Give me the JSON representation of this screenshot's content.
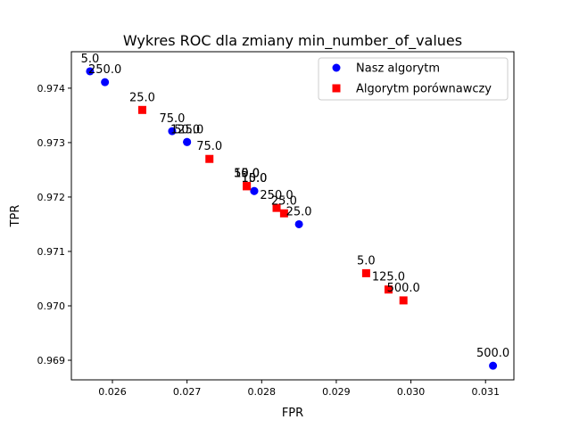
{
  "chart_data": {
    "type": "scatter",
    "title": "Wykres ROC dla zmiany min_number_of_values",
    "xlabel": "FPR",
    "ylabel": "TPR",
    "xlim": [
      0.02545,
      0.03138
    ],
    "ylim": [
      0.96864,
      0.97467
    ],
    "xticks": [
      {
        "value": 0.026,
        "label": "0.026"
      },
      {
        "value": 0.027,
        "label": "0.027"
      },
      {
        "value": 0.028,
        "label": "0.028"
      },
      {
        "value": 0.029,
        "label": "0.029"
      },
      {
        "value": 0.03,
        "label": "0.030"
      },
      {
        "value": 0.031,
        "label": "0.031"
      }
    ],
    "yticks": [
      {
        "value": 0.969,
        "label": "0.969"
      },
      {
        "value": 0.97,
        "label": "0.970"
      },
      {
        "value": 0.971,
        "label": "0.971"
      },
      {
        "value": 0.972,
        "label": "0.972"
      },
      {
        "value": 0.973,
        "label": "0.973"
      },
      {
        "value": 0.974,
        "label": "0.974"
      }
    ],
    "grid": false,
    "legend_position": "top-right",
    "series": [
      {
        "name": "Nasz algorytm",
        "marker": "circle",
        "color": "#0000ff",
        "points": [
          {
            "x": 0.0257,
            "y": 0.97431,
            "label": "5.0"
          },
          {
            "x": 0.0259,
            "y": 0.97411,
            "label": "250.0"
          },
          {
            "x": 0.0268,
            "y": 0.97321,
            "label": "75.0"
          },
          {
            "x": 0.027,
            "y": 0.97301,
            "label": "50.0"
          },
          {
            "x": 0.027,
            "y": 0.97301,
            "label": "125.0"
          },
          {
            "x": 0.0279,
            "y": 0.97211,
            "label": "15.0"
          },
          {
            "x": 0.0279,
            "y": 0.97211,
            "label": "10.0"
          },
          {
            "x": 0.0285,
            "y": 0.9715,
            "label": "25.0"
          },
          {
            "x": 0.0311,
            "y": 0.9689,
            "label": "500.0"
          }
        ]
      },
      {
        "name": "Algorytm porównawczy",
        "marker": "square",
        "color": "#ff0000",
        "points": [
          {
            "x": 0.0264,
            "y": 0.9736,
            "label": "25.0"
          },
          {
            "x": 0.0273,
            "y": 0.9727,
            "label": "75.0"
          },
          {
            "x": 0.0278,
            "y": 0.9722,
            "label": "50.0"
          },
          {
            "x": 0.0278,
            "y": 0.9722,
            "label": "15.0"
          },
          {
            "x": 0.0278,
            "y": 0.9722,
            "label": "10.0"
          },
          {
            "x": 0.0282,
            "y": 0.9718,
            "label": "250.0"
          },
          {
            "x": 0.0283,
            "y": 0.9717,
            "label": "25.0"
          },
          {
            "x": 0.0294,
            "y": 0.9706,
            "label": "5.0"
          },
          {
            "x": 0.0297,
            "y": 0.9703,
            "label": "125.0"
          },
          {
            "x": 0.0299,
            "y": 0.9701,
            "label": "500.0"
          }
        ]
      }
    ]
  }
}
